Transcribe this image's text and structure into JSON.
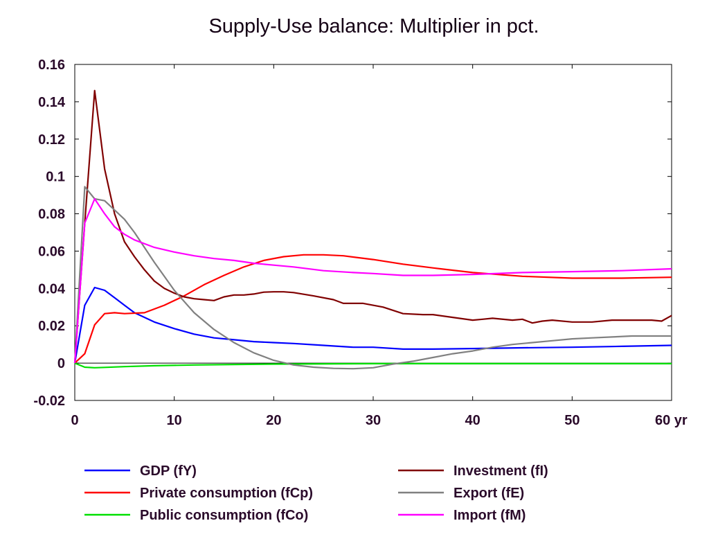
{
  "chart_data": {
    "type": "line",
    "title": "Supply-Use balance: Multiplier in pct.",
    "xlabel": "",
    "ylabel": "",
    "x_unit_label": "yr",
    "xlim": [
      0,
      60
    ],
    "ylim": [
      -0.02,
      0.16
    ],
    "x_ticks": [
      0,
      10,
      20,
      30,
      40,
      50,
      60
    ],
    "x_tick_labels": [
      "0",
      "10",
      "20",
      "30",
      "40",
      "50",
      "60 yr"
    ],
    "y_ticks": [
      -0.02,
      0,
      0.02,
      0.04,
      0.06,
      0.08,
      0.1,
      0.12,
      0.14,
      0.16
    ],
    "y_tick_labels": [
      "-0.02",
      "0",
      "0.02",
      "0.04",
      "0.06",
      "0.08",
      "0.1",
      "0.12",
      "0.14",
      "0.16"
    ],
    "grid": false,
    "legend_position": "bottom",
    "series": [
      {
        "name": "GDP (fY)",
        "color": "#0000ff",
        "points": [
          [
            0,
            0
          ],
          [
            1,
            0.031
          ],
          [
            2,
            0.0405
          ],
          [
            3,
            0.039
          ],
          [
            4,
            0.035
          ],
          [
            5,
            0.031
          ],
          [
            6,
            0.027
          ],
          [
            8,
            0.022
          ],
          [
            10,
            0.0185
          ],
          [
            12,
            0.0155
          ],
          [
            14,
            0.0135
          ],
          [
            16,
            0.0125
          ],
          [
            18,
            0.0115
          ],
          [
            20,
            0.011
          ],
          [
            22,
            0.0105
          ],
          [
            25,
            0.0095
          ],
          [
            28,
            0.0085
          ],
          [
            30,
            0.0085
          ],
          [
            33,
            0.0075
          ],
          [
            36,
            0.0075
          ],
          [
            40,
            0.0078
          ],
          [
            45,
            0.0082
          ],
          [
            50,
            0.0085
          ],
          [
            55,
            0.009
          ],
          [
            60,
            0.0095
          ]
        ]
      },
      {
        "name": "Private consumption (fCp)",
        "color": "#ff0000",
        "points": [
          [
            0,
            0
          ],
          [
            1,
            0.005
          ],
          [
            2,
            0.0205
          ],
          [
            3,
            0.0265
          ],
          [
            4,
            0.027
          ],
          [
            5,
            0.0265
          ],
          [
            7,
            0.027
          ],
          [
            9,
            0.031
          ],
          [
            11,
            0.036
          ],
          [
            13,
            0.042
          ],
          [
            15,
            0.047
          ],
          [
            17,
            0.0515
          ],
          [
            19,
            0.055
          ],
          [
            21,
            0.057
          ],
          [
            23,
            0.058
          ],
          [
            25,
            0.058
          ],
          [
            27,
            0.0575
          ],
          [
            30,
            0.0555
          ],
          [
            33,
            0.053
          ],
          [
            36,
            0.051
          ],
          [
            40,
            0.0485
          ],
          [
            45,
            0.0465
          ],
          [
            50,
            0.0455
          ],
          [
            55,
            0.0455
          ],
          [
            60,
            0.046
          ]
        ]
      },
      {
        "name": "Public consumption (fCo)",
        "color": "#00e000",
        "points": [
          [
            0,
            0
          ],
          [
            1,
            -0.0022
          ],
          [
            2,
            -0.0025
          ],
          [
            3,
            -0.0023
          ],
          [
            5,
            -0.0019
          ],
          [
            8,
            -0.0014
          ],
          [
            12,
            -0.001
          ],
          [
            20,
            -0.0005
          ],
          [
            30,
            -0.0003
          ],
          [
            40,
            -0.0003
          ],
          [
            50,
            -0.0003
          ],
          [
            60,
            -0.0003
          ]
        ]
      },
      {
        "name": "Investment (fI)",
        "color": "#800000",
        "points": [
          [
            0,
            0
          ],
          [
            1,
            0.075
          ],
          [
            2,
            0.146
          ],
          [
            3,
            0.104
          ],
          [
            4,
            0.08
          ],
          [
            5,
            0.065
          ],
          [
            6,
            0.057
          ],
          [
            7,
            0.05
          ],
          [
            8,
            0.044
          ],
          [
            9,
            0.04
          ],
          [
            10,
            0.0375
          ],
          [
            11,
            0.0355
          ],
          [
            12,
            0.0345
          ],
          [
            13,
            0.034
          ],
          [
            14,
            0.0335
          ],
          [
            15,
            0.0355
          ],
          [
            16,
            0.0365
          ],
          [
            17,
            0.0365
          ],
          [
            18,
            0.037
          ],
          [
            19,
            0.038
          ],
          [
            20,
            0.0382
          ],
          [
            21,
            0.0382
          ],
          [
            22,
            0.0378
          ],
          [
            24,
            0.036
          ],
          [
            26,
            0.034
          ],
          [
            27,
            0.032
          ],
          [
            29,
            0.032
          ],
          [
            31,
            0.03
          ],
          [
            33,
            0.0265
          ],
          [
            35,
            0.026
          ],
          [
            36,
            0.026
          ],
          [
            38,
            0.0245
          ],
          [
            40,
            0.023
          ],
          [
            41,
            0.0235
          ],
          [
            42,
            0.024
          ],
          [
            44,
            0.023
          ],
          [
            45,
            0.0235
          ],
          [
            46,
            0.0215
          ],
          [
            47,
            0.0225
          ],
          [
            48,
            0.023
          ],
          [
            50,
            0.022
          ],
          [
            52,
            0.022
          ],
          [
            54,
            0.023
          ],
          [
            56,
            0.023
          ],
          [
            58,
            0.023
          ],
          [
            59,
            0.0225
          ],
          [
            60,
            0.0255
          ]
        ]
      },
      {
        "name": "Export (fE)",
        "color": "#808080",
        "points": [
          [
            0,
            0
          ],
          [
            1,
            0.0945
          ],
          [
            2,
            0.088
          ],
          [
            3,
            0.087
          ],
          [
            4,
            0.082
          ],
          [
            5,
            0.077
          ],
          [
            6,
            0.07
          ],
          [
            7,
            0.062
          ],
          [
            8,
            0.054
          ],
          [
            10,
            0.039
          ],
          [
            12,
            0.027
          ],
          [
            14,
            0.018
          ],
          [
            16,
            0.011
          ],
          [
            18,
            0.0055
          ],
          [
            20,
            0.0015
          ],
          [
            22,
            -0.001
          ],
          [
            24,
            -0.0022
          ],
          [
            26,
            -0.0028
          ],
          [
            28,
            -0.003
          ],
          [
            30,
            -0.0025
          ],
          [
            32,
            -0.0005
          ],
          [
            34,
            0.001
          ],
          [
            36,
            0.003
          ],
          [
            38,
            0.005
          ],
          [
            40,
            0.0065
          ],
          [
            42,
            0.0085
          ],
          [
            44,
            0.01
          ],
          [
            46,
            0.011
          ],
          [
            48,
            0.012
          ],
          [
            50,
            0.013
          ],
          [
            52,
            0.0135
          ],
          [
            54,
            0.014
          ],
          [
            56,
            0.0145
          ],
          [
            58,
            0.0145
          ],
          [
            60,
            0.0145
          ]
        ]
      },
      {
        "name": "Import (fM)",
        "color": "#ff00ff",
        "points": [
          [
            0,
            0
          ],
          [
            1,
            0.075
          ],
          [
            2,
            0.088
          ],
          [
            3,
            0.08
          ],
          [
            4,
            0.073
          ],
          [
            5,
            0.069
          ],
          [
            6,
            0.066
          ],
          [
            8,
            0.062
          ],
          [
            10,
            0.0595
          ],
          [
            12,
            0.0575
          ],
          [
            14,
            0.056
          ],
          [
            16,
            0.055
          ],
          [
            18,
            0.0535
          ],
          [
            20,
            0.0525
          ],
          [
            22,
            0.0515
          ],
          [
            25,
            0.0495
          ],
          [
            28,
            0.0485
          ],
          [
            30,
            0.048
          ],
          [
            33,
            0.047
          ],
          [
            36,
            0.047
          ],
          [
            40,
            0.0475
          ],
          [
            45,
            0.0485
          ],
          [
            50,
            0.049
          ],
          [
            55,
            0.0495
          ],
          [
            60,
            0.0505
          ]
        ]
      }
    ]
  }
}
